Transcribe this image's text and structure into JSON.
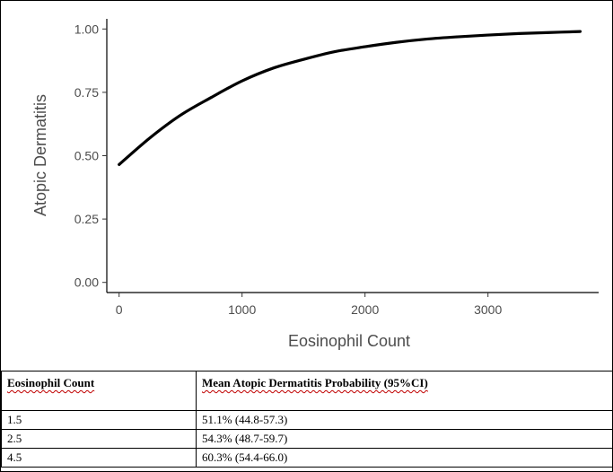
{
  "chart_data": {
    "type": "line",
    "xlabel": "Eosinophil Count",
    "ylabel": "Atopic Dermatitis",
    "xlim": [
      -100,
      3900
    ],
    "ylim": [
      -0.04,
      1.04
    ],
    "x_ticks": [
      0,
      1000,
      2000,
      3000
    ],
    "x_tick_labels": [
      "0",
      "1000",
      "2000",
      "3000"
    ],
    "y_ticks": [
      0,
      0.25,
      0.5,
      0.75,
      1.0
    ],
    "y_tick_labels": [
      "0.00",
      "0.25",
      "0.50",
      "0.75",
      "1.00"
    ],
    "grid": false,
    "series": [
      {
        "color": "#000000",
        "x": [
          0,
          250,
          500,
          750,
          1000,
          1250,
          1500,
          1750,
          2000,
          2250,
          2500,
          2750,
          3000,
          3250,
          3500,
          3750
        ],
        "y": [
          0.465,
          0.57,
          0.66,
          0.73,
          0.795,
          0.845,
          0.88,
          0.91,
          0.93,
          0.947,
          0.96,
          0.969,
          0.976,
          0.982,
          0.986,
          0.99
        ]
      }
    ]
  },
  "table": {
    "headers": [
      "Eosinophil Count",
      "Mean Atopic Dermatitis Probability (95%CI)"
    ],
    "rows": [
      [
        "1.5",
        "51.1% (44.8-57.3)"
      ],
      [
        "2.5",
        "54.3% (48.7-59.7)"
      ],
      [
        "4.5",
        "60.3% (54.4-66.0)"
      ]
    ]
  }
}
